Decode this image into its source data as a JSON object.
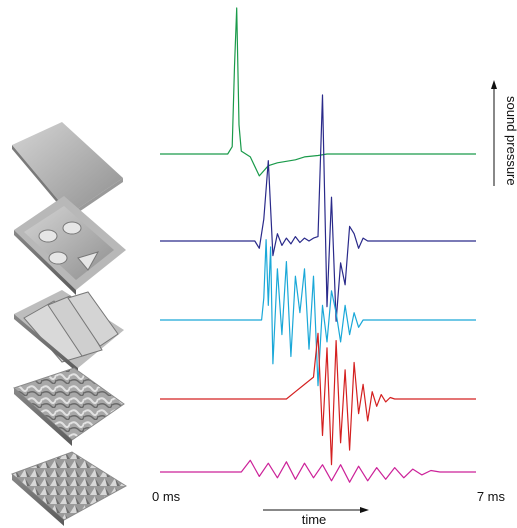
{
  "chart_data": {
    "type": "line",
    "title": "",
    "xlabel": "time",
    "ylabel": "sound pressure",
    "xlim": [
      0,
      7
    ],
    "x_unit": "ms",
    "tick_labels": {
      "start": "0 ms",
      "end": "7 ms"
    },
    "grid": false,
    "legend": "none",
    "series": [
      {
        "color": "#1a9a4a",
        "surface_icon": "flat-plate-icon",
        "x": [
          0,
          1.5,
          1.6,
          1.65,
          1.7,
          1.75,
          1.8,
          1.9,
          2.0,
          2.2,
          2.4,
          2.6,
          2.8,
          3.0,
          3.2,
          3.5,
          3.7,
          7
        ],
        "values": [
          0,
          0,
          0.05,
          0.6,
          1.0,
          0.2,
          0.02,
          0,
          -0.02,
          -0.15,
          -0.08,
          -0.06,
          -0.05,
          -0.04,
          -0.02,
          -0.01,
          0,
          0
        ]
      },
      {
        "color": "#2a2a8a",
        "surface_icon": "shapes-plate-icon",
        "x": [
          0,
          2.1,
          2.2,
          2.3,
          2.4,
          2.5,
          2.6,
          2.7,
          2.8,
          2.9,
          3.0,
          3.1,
          3.2,
          3.3,
          3.4,
          3.5,
          3.6,
          3.7,
          3.8,
          3.9,
          4.0,
          4.1,
          4.2,
          4.3,
          4.4,
          4.5,
          4.6,
          7
        ],
        "values": [
          0,
          0,
          -0.05,
          0.15,
          0.55,
          -0.1,
          0.05,
          -0.03,
          0.02,
          -0.02,
          0.03,
          -0.01,
          0.02,
          0,
          0.02,
          0.03,
          1.0,
          -0.45,
          0.3,
          -0.55,
          -0.15,
          -0.3,
          0.1,
          0.05,
          -0.05,
          0.02,
          0,
          0
        ]
      },
      {
        "color": "#1aa8d8",
        "surface_icon": "ridged-plate-icon",
        "x": [
          0,
          2.25,
          2.3,
          2.35,
          2.4,
          2.45,
          2.5,
          2.6,
          2.7,
          2.8,
          2.9,
          3.0,
          3.1,
          3.2,
          3.3,
          3.4,
          3.5,
          3.6,
          3.7,
          3.8,
          3.9,
          4.0,
          4.1,
          4.2,
          4.3,
          4.4,
          4.5,
          7
        ],
        "values": [
          0,
          0,
          0.15,
          0.55,
          0.1,
          0.5,
          -0.3,
          0.35,
          -0.1,
          0.4,
          -0.25,
          0.3,
          0.05,
          0.35,
          -0.2,
          0.3,
          -0.45,
          0.1,
          -0.15,
          0.2,
          0.05,
          -0.15,
          0.1,
          -0.1,
          0.05,
          -0.05,
          0,
          0
        ]
      },
      {
        "color": "#d42020",
        "surface_icon": "rough-terrain-icon",
        "x": [
          0,
          2.8,
          3.0,
          3.2,
          3.4,
          3.5,
          3.6,
          3.7,
          3.8,
          3.9,
          4.0,
          4.1,
          4.2,
          4.3,
          4.4,
          4.5,
          4.6,
          4.7,
          4.8,
          4.9,
          5.0,
          5.1,
          5.2,
          7
        ],
        "values": [
          0,
          0,
          0.05,
          0.1,
          0.15,
          0.45,
          -0.25,
          0.35,
          -0.45,
          0.4,
          -0.3,
          0.2,
          -0.35,
          0.25,
          -0.1,
          0.1,
          -0.15,
          0.05,
          -0.05,
          0.03,
          -0.02,
          0.01,
          0,
          0
        ]
      },
      {
        "color": "#cc2299",
        "surface_icon": "bumpy-surface-icon",
        "x": [
          0,
          1.8,
          2.0,
          2.2,
          2.4,
          2.6,
          2.8,
          3.0,
          3.2,
          3.4,
          3.6,
          3.8,
          4.0,
          4.2,
          4.4,
          4.6,
          4.8,
          5.0,
          5.2,
          5.4,
          5.6,
          5.8,
          6.0,
          6.2,
          7
        ],
        "values": [
          0,
          0,
          0.08,
          -0.03,
          0.06,
          -0.04,
          0.07,
          -0.05,
          0.06,
          -0.04,
          0.05,
          -0.06,
          0.05,
          -0.07,
          0.04,
          -0.06,
          0.03,
          -0.05,
          0.03,
          -0.04,
          0.02,
          -0.02,
          0.01,
          0,
          0
        ]
      }
    ]
  }
}
